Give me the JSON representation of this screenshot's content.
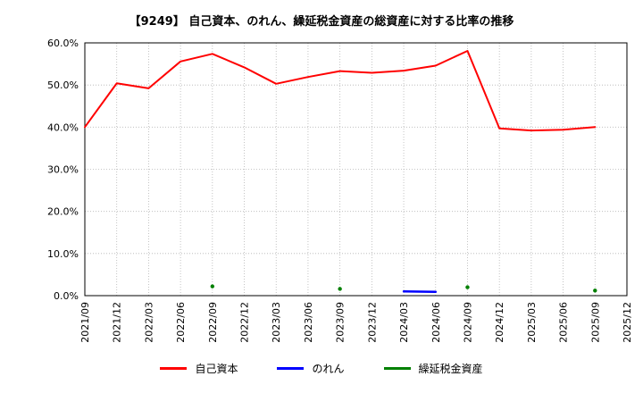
{
  "title": "【9249】  自己資本、のれん、繰延税金資産の総資産に対する比率の推移",
  "chart_data": {
    "type": "line",
    "title": "【9249】  自己資本、のれん、繰延税金資産の総資産に対する比率の推移",
    "categories": [
      "2021/09",
      "2021/12",
      "2022/03",
      "2022/06",
      "2022/09",
      "2022/12",
      "2023/03",
      "2023/06",
      "2023/09",
      "2023/12",
      "2024/03",
      "2024/06",
      "2024/09",
      "2024/12",
      "2025/03",
      "2025/06",
      "2025/09",
      "2025/12"
    ],
    "series": [
      {
        "name": "自己資本",
        "color": "#ff0000",
        "marker": false,
        "values": [
          40.0,
          50.4,
          49.2,
          55.6,
          57.4,
          54.2,
          50.3,
          51.9,
          53.3,
          52.9,
          53.4,
          54.6,
          58.1,
          39.7,
          39.2,
          39.4,
          40.0,
          null
        ]
      },
      {
        "name": "のれん",
        "color": "#0000ff",
        "marker": false,
        "values": [
          null,
          null,
          null,
          null,
          null,
          null,
          null,
          null,
          null,
          null,
          1.0,
          0.9,
          null,
          null,
          null,
          null,
          null,
          null
        ]
      },
      {
        "name": "繰延税金資産",
        "color": "#008000",
        "marker": true,
        "values": [
          null,
          null,
          null,
          null,
          2.2,
          null,
          null,
          null,
          1.6,
          null,
          null,
          null,
          2.0,
          null,
          null,
          null,
          1.2,
          null
        ]
      }
    ],
    "ylim": [
      0,
      60
    ],
    "ytick_step": 10,
    "ytick_suffix": "%",
    "grid": true,
    "legend_position": "bottom"
  }
}
